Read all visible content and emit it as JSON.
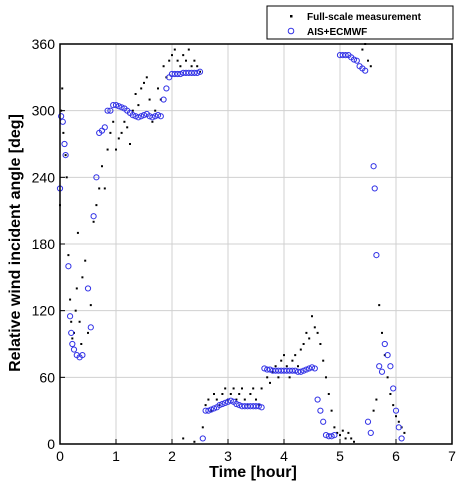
{
  "chart_data": {
    "type": "scatter",
    "xlabel": "Time [hour]",
    "ylabel": "Relative wind incident angle [deg]",
    "xlim": [
      0,
      7
    ],
    "ylim": [
      0,
      360
    ],
    "xticks": [
      "0",
      "1",
      "2",
      "3",
      "4",
      "5",
      "6",
      "7"
    ],
    "yticks": [
      "0",
      "60",
      "120",
      "180",
      "240",
      "300",
      "360"
    ],
    "grid": true,
    "legend_position": "top-right",
    "series": [
      {
        "name": "Full-scale measurement",
        "marker": "dot",
        "color": "#000000",
        "points": [
          [
            0.0,
            215
          ],
          [
            0.02,
            300
          ],
          [
            0.04,
            320
          ],
          [
            0.06,
            280
          ],
          [
            0.1,
            260
          ],
          [
            0.12,
            240
          ],
          [
            0.15,
            170
          ],
          [
            0.18,
            130
          ],
          [
            0.2,
            110
          ],
          [
            0.22,
            95
          ],
          [
            0.25,
            100
          ],
          [
            0.28,
            120
          ],
          [
            0.3,
            140
          ],
          [
            0.32,
            190
          ],
          [
            0.35,
            110
          ],
          [
            0.38,
            90
          ],
          [
            0.4,
            150
          ],
          [
            0.45,
            165
          ],
          [
            0.5,
            100
          ],
          [
            0.55,
            125
          ],
          [
            0.6,
            200
          ],
          [
            0.65,
            215
          ],
          [
            0.7,
            230
          ],
          [
            0.75,
            250
          ],
          [
            0.8,
            230
          ],
          [
            0.85,
            265
          ],
          [
            0.9,
            280
          ],
          [
            0.95,
            290
          ],
          [
            1.0,
            265
          ],
          [
            1.05,
            275
          ],
          [
            1.1,
            280
          ],
          [
            1.15,
            290
          ],
          [
            1.2,
            285
          ],
          [
            1.25,
            270
          ],
          [
            1.3,
            300
          ],
          [
            1.35,
            315
          ],
          [
            1.4,
            305
          ],
          [
            1.45,
            320
          ],
          [
            1.5,
            325
          ],
          [
            1.55,
            330
          ],
          [
            1.6,
            310
          ],
          [
            1.65,
            290
          ],
          [
            1.7,
            300
          ],
          [
            1.75,
            320
          ],
          [
            1.8,
            310
          ],
          [
            1.85,
            340
          ],
          [
            1.9,
            330
          ],
          [
            1.95,
            345
          ],
          [
            2.0,
            350
          ],
          [
            2.05,
            355
          ],
          [
            2.1,
            345
          ],
          [
            2.15,
            340
          ],
          [
            2.2,
            350
          ],
          [
            2.25,
            345
          ],
          [
            2.3,
            355
          ],
          [
            2.35,
            340
          ],
          [
            2.4,
            345
          ],
          [
            2.45,
            340
          ],
          [
            2.5,
            335
          ],
          [
            2.2,
            5
          ],
          [
            2.4,
            2
          ],
          [
            2.55,
            15
          ],
          [
            2.6,
            35
          ],
          [
            2.65,
            40
          ],
          [
            2.7,
            30
          ],
          [
            2.75,
            45
          ],
          [
            2.8,
            40
          ],
          [
            2.85,
            35
          ],
          [
            2.9,
            45
          ],
          [
            2.95,
            50
          ],
          [
            3.0,
            40
          ],
          [
            3.05,
            45
          ],
          [
            3.1,
            50
          ],
          [
            3.15,
            40
          ],
          [
            3.2,
            45
          ],
          [
            3.25,
            50
          ],
          [
            3.3,
            40
          ],
          [
            3.35,
            35
          ],
          [
            3.4,
            45
          ],
          [
            3.45,
            50
          ],
          [
            3.5,
            40
          ],
          [
            3.55,
            35
          ],
          [
            3.6,
            50
          ],
          [
            3.7,
            60
          ],
          [
            3.75,
            55
          ],
          [
            3.8,
            65
          ],
          [
            3.85,
            70
          ],
          [
            3.9,
            60
          ],
          [
            3.95,
            75
          ],
          [
            4.0,
            80
          ],
          [
            4.05,
            70
          ],
          [
            4.1,
            60
          ],
          [
            4.15,
            75
          ],
          [
            4.2,
            80
          ],
          [
            4.25,
            70
          ],
          [
            4.3,
            85
          ],
          [
            4.35,
            90
          ],
          [
            4.4,
            100
          ],
          [
            4.45,
            95
          ],
          [
            4.5,
            115
          ],
          [
            4.55,
            105
          ],
          [
            4.6,
            100
          ],
          [
            4.65,
            90
          ],
          [
            4.7,
            75
          ],
          [
            4.75,
            60
          ],
          [
            4.8,
            45
          ],
          [
            4.85,
            30
          ],
          [
            4.9,
            15
          ],
          [
            4.95,
            10
          ],
          [
            5.0,
            8
          ],
          [
            5.05,
            12
          ],
          [
            5.1,
            5
          ],
          [
            5.15,
            10
          ],
          [
            5.2,
            5
          ],
          [
            5.25,
            2
          ],
          [
            5.4,
            355
          ],
          [
            5.45,
            360
          ],
          [
            5.5,
            345
          ],
          [
            5.55,
            340
          ],
          [
            5.6,
            30
          ],
          [
            5.65,
            40
          ],
          [
            5.7,
            125
          ],
          [
            5.75,
            100
          ],
          [
            5.8,
            80
          ],
          [
            5.85,
            60
          ],
          [
            5.9,
            45
          ],
          [
            5.95,
            35
          ],
          [
            6.0,
            25
          ],
          [
            6.05,
            20
          ],
          [
            6.1,
            15
          ],
          [
            6.15,
            10
          ]
        ]
      },
      {
        "name": "AIS+ECMWF",
        "marker": "circle",
        "color": "#3232e6",
        "points": [
          [
            0.0,
            230
          ],
          [
            0.02,
            295
          ],
          [
            0.05,
            290
          ],
          [
            0.08,
            270
          ],
          [
            0.1,
            260
          ],
          [
            0.15,
            160
          ],
          [
            0.18,
            115
          ],
          [
            0.2,
            100
          ],
          [
            0.22,
            90
          ],
          [
            0.25,
            85
          ],
          [
            0.3,
            80
          ],
          [
            0.35,
            78
          ],
          [
            0.4,
            80
          ],
          [
            0.5,
            140
          ],
          [
            0.55,
            105
          ],
          [
            0.6,
            205
          ],
          [
            0.65,
            240
          ],
          [
            0.7,
            280
          ],
          [
            0.75,
            282
          ],
          [
            0.8,
            285
          ],
          [
            0.85,
            300
          ],
          [
            0.9,
            300
          ],
          [
            0.95,
            305
          ],
          [
            1.0,
            305
          ],
          [
            1.05,
            304
          ],
          [
            1.1,
            303
          ],
          [
            1.15,
            302
          ],
          [
            1.2,
            300
          ],
          [
            1.25,
            298
          ],
          [
            1.3,
            296
          ],
          [
            1.35,
            295
          ],
          [
            1.4,
            294
          ],
          [
            1.45,
            295
          ],
          [
            1.5,
            296
          ],
          [
            1.55,
            297
          ],
          [
            1.6,
            295
          ],
          [
            1.65,
            294
          ],
          [
            1.7,
            295
          ],
          [
            1.75,
            296
          ],
          [
            1.8,
            295
          ],
          [
            1.85,
            310
          ],
          [
            1.9,
            320
          ],
          [
            1.95,
            330
          ],
          [
            2.0,
            333
          ],
          [
            2.05,
            333
          ],
          [
            2.1,
            333
          ],
          [
            2.15,
            333
          ],
          [
            2.2,
            334
          ],
          [
            2.25,
            334
          ],
          [
            2.3,
            334
          ],
          [
            2.35,
            334
          ],
          [
            2.4,
            334
          ],
          [
            2.45,
            334
          ],
          [
            2.5,
            335
          ],
          [
            2.55,
            5
          ],
          [
            2.6,
            30
          ],
          [
            2.65,
            30
          ],
          [
            2.7,
            31
          ],
          [
            2.75,
            32
          ],
          [
            2.8,
            33
          ],
          [
            2.85,
            35
          ],
          [
            2.9,
            36
          ],
          [
            2.95,
            37
          ],
          [
            3.0,
            38
          ],
          [
            3.05,
            39
          ],
          [
            3.1,
            38
          ],
          [
            3.15,
            36
          ],
          [
            3.2,
            35
          ],
          [
            3.25,
            34
          ],
          [
            3.3,
            34
          ],
          [
            3.35,
            34
          ],
          [
            3.4,
            34
          ],
          [
            3.45,
            34
          ],
          [
            3.5,
            34
          ],
          [
            3.55,
            34
          ],
          [
            3.6,
            33
          ],
          [
            3.65,
            68
          ],
          [
            3.7,
            67
          ],
          [
            3.75,
            67
          ],
          [
            3.8,
            66
          ],
          [
            3.85,
            66
          ],
          [
            3.9,
            66
          ],
          [
            3.95,
            66
          ],
          [
            4.0,
            66
          ],
          [
            4.05,
            66
          ],
          [
            4.1,
            66
          ],
          [
            4.15,
            66
          ],
          [
            4.2,
            66
          ],
          [
            4.25,
            65
          ],
          [
            4.3,
            65
          ],
          [
            4.35,
            66
          ],
          [
            4.4,
            67
          ],
          [
            4.45,
            68
          ],
          [
            4.5,
            69
          ],
          [
            4.55,
            68
          ],
          [
            4.6,
            40
          ],
          [
            4.65,
            30
          ],
          [
            4.7,
            20
          ],
          [
            4.75,
            8
          ],
          [
            4.8,
            7
          ],
          [
            4.85,
            7
          ],
          [
            4.9,
            8
          ],
          [
            5.0,
            350
          ],
          [
            5.05,
            350
          ],
          [
            5.1,
            350
          ],
          [
            5.15,
            350
          ],
          [
            5.2,
            348
          ],
          [
            5.25,
            346
          ],
          [
            5.3,
            345
          ],
          [
            5.35,
            340
          ],
          [
            5.4,
            338
          ],
          [
            5.45,
            336
          ],
          [
            5.5,
            20
          ],
          [
            5.55,
            10
          ],
          [
            5.6,
            250
          ],
          [
            5.62,
            230
          ],
          [
            5.65,
            170
          ],
          [
            5.7,
            70
          ],
          [
            5.75,
            65
          ],
          [
            5.8,
            90
          ],
          [
            5.85,
            80
          ],
          [
            5.9,
            70
          ],
          [
            5.95,
            50
          ],
          [
            6.0,
            30
          ],
          [
            6.05,
            15
          ],
          [
            6.1,
            5
          ]
        ]
      }
    ]
  }
}
